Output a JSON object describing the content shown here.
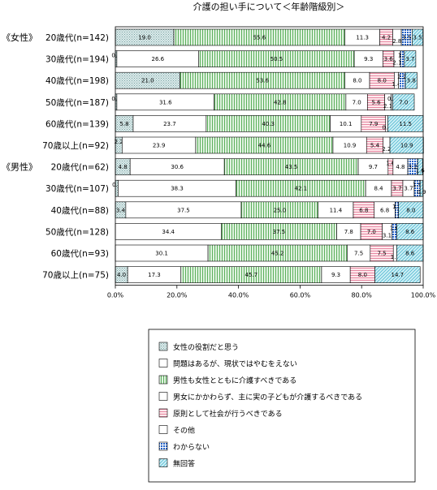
{
  "chart_data": {
    "type": "bar",
    "orientation": "horizontal",
    "stacked": true,
    "title": "介護の担い手について＜年齢階級別＞",
    "groups": [
      {
        "label": "《女性》",
        "first_row": 0
      },
      {
        "label": "《男性》",
        "first_row": 6
      }
    ],
    "categories": [
      "20歳代(n=142)",
      "30歳代(n=194)",
      "40歳代(n=198)",
      "50歳代(n=187)",
      "60歳代(n=139)",
      "70歳以上(n=92)",
      "20歳代(n=62)",
      "30歳代(n=107)",
      "40歳代(n=88)",
      "50歳代(n=128)",
      "60歳代(n=93)",
      "70歳以上(n=75)"
    ],
    "series": [
      {
        "name": "女性の役割だと思う",
        "color": "#c8e0e0",
        "pattern": "stipple",
        "values": [
          19.0,
          0.5,
          21.0,
          0.5,
          5.8,
          2.2,
          4.8,
          0.9,
          3.4,
          0,
          0,
          4.0
        ]
      },
      {
        "name": "問題はあるが、現状ではやむをえない",
        "color": "#ffffff",
        "pattern": "none",
        "values": [
          0,
          26.6,
          0,
          31.6,
          23.7,
          23.9,
          30.6,
          38.3,
          37.5,
          34.4,
          30.1,
          17.3
        ]
      },
      {
        "name": "男性も女性とともに介護すべきである",
        "color": "#cce8cc",
        "pattern": "vlines",
        "values": [
          55.6,
          50.5,
          53.6,
          42.8,
          40.3,
          44.6,
          43.5,
          42.1,
          25.0,
          37.5,
          45.2,
          45.7
        ]
      },
      {
        "name": "男女にかかわらず、主に実の子どもが介護するべきである",
        "color": "#ffffff",
        "pattern": "none",
        "values": [
          11.3,
          9.3,
          8.0,
          7.0,
          10.1,
          10.9,
          9.7,
          8.4,
          11.4,
          7.8,
          7.5,
          9.3
        ]
      },
      {
        "name": "原則として社会が行うべきである",
        "color": "#ffd0d8",
        "pattern": "hlines",
        "values": [
          4.2,
          3.6,
          8.0,
          5.6,
          7.9,
          5.4,
          1.6,
          3.7,
          6.8,
          7.0,
          7.5,
          8.0
        ]
      },
      {
        "name": "その他",
        "color": "#ffffff",
        "pattern": "none",
        "values": [
          2.8,
          2.1,
          1.4,
          2.1,
          0.7,
          2.2,
          4.8,
          3.7,
          6.8,
          3.1,
          1.1,
          0
        ]
      },
      {
        "name": "わからない",
        "color": "#3070d0",
        "pattern": "grid",
        "values": [
          3.5,
          1.3,
          2.2,
          0.5,
          0,
          0,
          3.2,
          1.9,
          1.1,
          1.6,
          0,
          0
        ]
      },
      {
        "name": "無回答",
        "color": "#b8e8f0",
        "pattern": "diag",
        "values": [
          3.5,
          3.7,
          3.8,
          7.0,
          11.5,
          10.9,
          1.6,
          0.9,
          8.0,
          8.6,
          8.6,
          14.7
        ]
      }
    ],
    "labels": [
      [
        "19.0",
        "",
        "55.6",
        "11.3",
        "4.2",
        "2.8",
        "3.5",
        "3.5"
      ],
      [
        "0.5",
        "26.6",
        "50.5",
        "9.3",
        "3.6",
        "2.1",
        "1.3",
        "3.7"
      ],
      [
        "21.0",
        "",
        "53.6",
        "8.0",
        "8.0",
        "1.4",
        "2.2",
        "3.8"
      ],
      [
        "0.5",
        "31.6",
        "42.8",
        "7.0",
        "5.6",
        "2.1",
        "0.5",
        "7.0"
      ],
      [
        "5.8",
        "23.7",
        "40.3",
        "10.1",
        "7.9",
        "0.7",
        "",
        "11.5"
      ],
      [
        "2.2",
        "23.9",
        "44.6",
        "10.9",
        "5.4",
        "2.2",
        "",
        "10.9"
      ],
      [
        "4.8",
        "30.6",
        "43.5",
        "9.7",
        "1.6",
        "4.8",
        "3.2",
        "1.6"
      ],
      [
        "0.9",
        "38.3",
        "42.1",
        "8.4",
        "3.7",
        "3.7",
        "1.9",
        "0.9"
      ],
      [
        "3.4",
        "37.5",
        "25.0",
        "11.4",
        "6.8",
        "6.8",
        "1.1",
        "8.0"
      ],
      [
        "",
        "34.4",
        "37.5",
        "7.8",
        "7.0",
        "3.1",
        "1.6",
        "8.6"
      ],
      [
        "",
        "30.1",
        "45.2",
        "7.5",
        "7.5",
        "1.1",
        "",
        "8.6"
      ],
      [
        "4.0",
        "17.3",
        "45.7",
        "9.3",
        "8.0",
        "",
        "",
        "14.7"
      ]
    ],
    "xlim": [
      0,
      100
    ],
    "xticks": [
      "0.0%",
      "20.0%",
      "40.0%",
      "60.0%",
      "80.0%",
      "100.0%"
    ],
    "grid": false,
    "legend_position": "bottom"
  }
}
